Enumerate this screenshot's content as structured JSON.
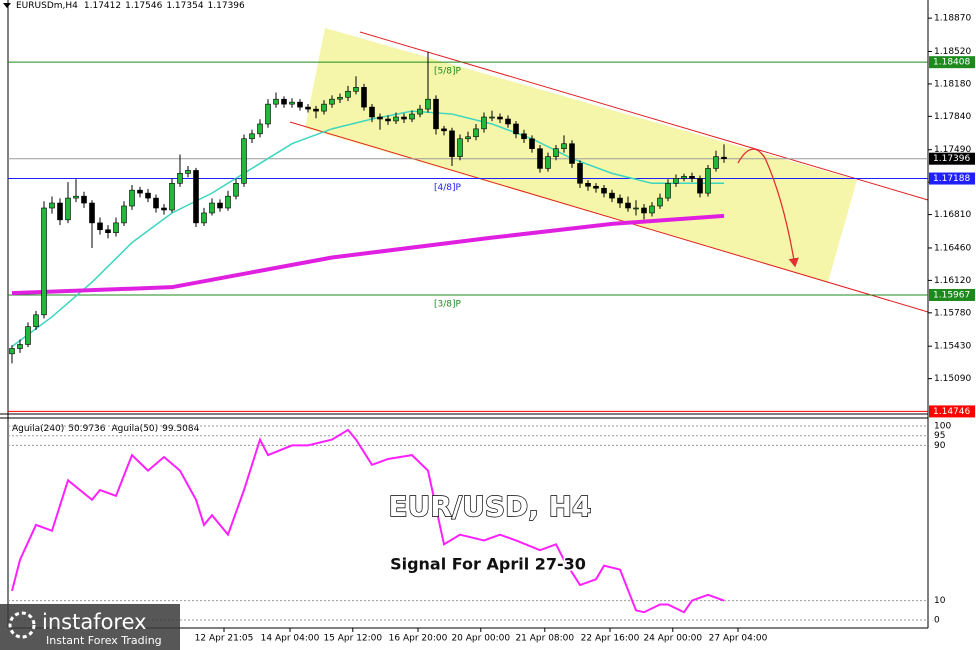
{
  "chart_data": [
    {
      "type": "candlestick",
      "title": "EURUSDm,H4",
      "xlim": [
        -0.5,
        114.5
      ],
      "ylim": [
        1.1474,
        1.1906
      ],
      "yticks": [
        {
          "value": 1.1887,
          "label": "1.18870"
        },
        {
          "value": 1.1852,
          "label": "1.18520"
        },
        {
          "value": 1.1818,
          "label": "1.18180"
        },
        {
          "value": 1.1784,
          "label": "1.17840"
        },
        {
          "value": 1.1749,
          "label": "1.17490"
        },
        {
          "value": 1.1715,
          "label": "1.17150"
        },
        {
          "value": 1.1681,
          "label": "1.16810"
        },
        {
          "value": 1.1646,
          "label": "1.16460"
        },
        {
          "value": 1.1612,
          "label": "1.16120"
        },
        {
          "value": 1.1578,
          "label": "1.15780"
        },
        {
          "value": 1.1543,
          "label": "1.15430"
        },
        {
          "value": 1.1509,
          "label": "1.15090"
        }
      ],
      "xticks": [
        {
          "value": 26.5,
          "label": "12 Apr 21:05"
        },
        {
          "value": 34.75,
          "label": "14 Apr 04:00"
        },
        {
          "value": 42.6,
          "label": "15 Apr 12:00"
        },
        {
          "value": 50.75,
          "label": "16 Apr 20:00"
        },
        {
          "value": 58.6,
          "label": "20 Apr 00:00"
        },
        {
          "value": 66.6,
          "label": "21 Apr 08:00"
        },
        {
          "value": 74.75,
          "label": "22 Apr 16:00"
        },
        {
          "value": 82.6,
          "label": "24 Apr 00:00"
        },
        {
          "value": 90.75,
          "label": "27 Apr 04:00"
        }
      ],
      "up_color": "#22b83a",
      "down_color": "#000000",
      "last_price_color": "#9a9a9a",
      "candles": [
        [
          1.1535,
          1.1544,
          1.1525,
          1.15406
        ],
        [
          1.15406,
          1.155,
          1.1536,
          1.15448
        ],
        [
          1.15448,
          1.1568,
          1.1542,
          1.15635
        ],
        [
          1.15635,
          1.158,
          1.156,
          1.15759
        ],
        [
          1.15759,
          1.1695,
          1.1572,
          1.16879
        ],
        [
          1.16879,
          1.17,
          1.1682,
          1.16931
        ],
        [
          1.16931,
          1.1698,
          1.167,
          1.16755
        ],
        [
          1.16755,
          1.1715,
          1.1672,
          1.16983
        ],
        [
          1.16983,
          1.1718,
          1.1694,
          1.17003
        ],
        [
          1.17003,
          1.1705,
          1.1688,
          1.16931
        ],
        [
          1.16931,
          1.1696,
          1.1646,
          1.16723
        ],
        [
          1.16723,
          1.1678,
          1.166,
          1.16651
        ],
        [
          1.16651,
          1.167,
          1.1656,
          1.1662
        ],
        [
          1.1662,
          1.1678,
          1.1658,
          1.16723
        ],
        [
          1.16723,
          1.1695,
          1.1669,
          1.169
        ],
        [
          1.169,
          1.1712,
          1.1686,
          1.17066
        ],
        [
          1.17066,
          1.171,
          1.1699,
          1.17035
        ],
        [
          1.17035,
          1.1708,
          1.1694,
          1.16983
        ],
        [
          1.16983,
          1.1702,
          1.1683,
          1.16879
        ],
        [
          1.16879,
          1.1692,
          1.1681,
          1.16858
        ],
        [
          1.16858,
          1.1719,
          1.1683,
          1.17138
        ],
        [
          1.17138,
          1.1744,
          1.171,
          1.17242
        ],
        [
          1.17242,
          1.1732,
          1.172,
          1.17273
        ],
        [
          1.17273,
          1.173,
          1.1668,
          1.16723
        ],
        [
          1.16723,
          1.1688,
          1.1669,
          1.16827
        ],
        [
          1.16827,
          1.1698,
          1.168,
          1.16931
        ],
        [
          1.16931,
          1.1697,
          1.1684,
          1.16879
        ],
        [
          1.16879,
          1.1706,
          1.1685,
          1.17003
        ],
        [
          1.17003,
          1.1719,
          1.1697,
          1.17138
        ],
        [
          1.17138,
          1.1765,
          1.171,
          1.17605
        ],
        [
          1.17605,
          1.177,
          1.1756,
          1.17657
        ],
        [
          1.17657,
          1.1781,
          1.1762,
          1.1776
        ],
        [
          1.1776,
          1.1802,
          1.1772,
          1.17968
        ],
        [
          1.17968,
          1.1809,
          1.1793,
          1.1802
        ],
        [
          1.1802,
          1.1805,
          1.1793,
          1.17968
        ],
        [
          1.17968,
          1.1803,
          1.1793,
          1.17989
        ],
        [
          1.17989,
          1.1802,
          1.179,
          1.17937
        ],
        [
          1.17937,
          1.1797,
          1.1788,
          1.17916
        ],
        [
          1.17916,
          1.1795,
          1.1782,
          1.17895
        ],
        [
          1.17895,
          1.1801,
          1.1786,
          1.17968
        ],
        [
          1.17968,
          1.1806,
          1.1793,
          1.1802
        ],
        [
          1.1802,
          1.1808,
          1.1798,
          1.1804
        ],
        [
          1.1804,
          1.1816,
          1.18,
          1.18103
        ],
        [
          1.18103,
          1.1826,
          1.1807,
          1.18144
        ],
        [
          1.18144,
          1.1818,
          1.179,
          1.17937
        ],
        [
          1.17937,
          1.1797,
          1.1778,
          1.17833
        ],
        [
          1.17833,
          1.1787,
          1.177,
          1.17812
        ],
        [
          1.17812,
          1.1785,
          1.1775,
          1.17792
        ],
        [
          1.17792,
          1.1788,
          1.1776,
          1.17833
        ],
        [
          1.17833,
          1.1787,
          1.1777,
          1.17812
        ],
        [
          1.17812,
          1.179,
          1.1778,
          1.17864
        ],
        [
          1.17864,
          1.1796,
          1.1783,
          1.17916
        ],
        [
          1.17916,
          1.18517,
          1.1788,
          1.1802
        ],
        [
          1.1802,
          1.1806,
          1.1765,
          1.17709
        ],
        [
          1.17709,
          1.1774,
          1.1764,
          1.17688
        ],
        [
          1.17688,
          1.1772,
          1.1732,
          1.17418
        ],
        [
          1.17418,
          1.1765,
          1.1738,
          1.17605
        ],
        [
          1.17605,
          1.1768,
          1.1757,
          1.17626
        ],
        [
          1.17626,
          1.1776,
          1.1759,
          1.17709
        ],
        [
          1.17709,
          1.1788,
          1.1767,
          1.17833
        ],
        [
          1.17833,
          1.179,
          1.1779,
          1.17833
        ],
        [
          1.17833,
          1.1787,
          1.1777,
          1.17812
        ],
        [
          1.17812,
          1.1785,
          1.1772,
          1.1776
        ],
        [
          1.1776,
          1.1779,
          1.1761,
          1.17657
        ],
        [
          1.17657,
          1.177,
          1.1756,
          1.17605
        ],
        [
          1.17605,
          1.1764,
          1.1746,
          1.17501
        ],
        [
          1.17501,
          1.1754,
          1.1725,
          1.17294
        ],
        [
          1.17294,
          1.1746,
          1.1726,
          1.17418
        ],
        [
          1.17418,
          1.1754,
          1.1738,
          1.17501
        ],
        [
          1.17501,
          1.1764,
          1.1746,
          1.17553
        ],
        [
          1.17553,
          1.1759,
          1.173,
          1.17346
        ],
        [
          1.17346,
          1.1738,
          1.1709,
          1.17138
        ],
        [
          1.17138,
          1.1717,
          1.1706,
          1.17107
        ],
        [
          1.17107,
          1.1714,
          1.1704,
          1.17086
        ],
        [
          1.17086,
          1.1712,
          1.1699,
          1.17035
        ],
        [
          1.17035,
          1.1707,
          1.1694,
          1.16983
        ],
        [
          1.16983,
          1.1702,
          1.1688,
          1.16931
        ],
        [
          1.16931,
          1.17,
          1.1684,
          1.16879
        ],
        [
          1.16879,
          1.1696,
          1.168,
          1.16879
        ],
        [
          1.16879,
          1.1692,
          1.1676,
          1.16827
        ],
        [
          1.16827,
          1.1694,
          1.1679,
          1.169
        ],
        [
          1.169,
          1.1703,
          1.1687,
          1.16983
        ],
        [
          1.16983,
          1.1718,
          1.1695,
          1.17138
        ],
        [
          1.17138,
          1.1723,
          1.171,
          1.1719
        ],
        [
          1.1719,
          1.1724,
          1.1716,
          1.17211
        ],
        [
          1.17211,
          1.1725,
          1.1715,
          1.1719
        ],
        [
          1.1719,
          1.1722,
          1.1699,
          1.17035
        ],
        [
          1.17035,
          1.1733,
          1.17,
          1.17294
        ],
        [
          1.17294,
          1.1748,
          1.1726,
          1.17418
        ],
        [
          1.17412,
          1.17546,
          1.17354,
          1.17396
        ]
      ],
      "moving_averages": [
        {
          "color": "#3cd6c0",
          "width": 1.5,
          "x": [
            0,
            5,
            10,
            15,
            20,
            25,
            30,
            35,
            40,
            45,
            50,
            55,
            60,
            65,
            70,
            75,
            80,
            85,
            89
          ],
          "values": [
            1.15427,
            1.15738,
            1.16101,
            1.16516,
            1.16827,
            1.17035,
            1.17294,
            1.17553,
            1.17709,
            1.17812,
            1.17895,
            1.17864,
            1.1776,
            1.17605,
            1.17397,
            1.17242,
            1.17138,
            1.17138,
            1.17138
          ]
        },
        {
          "color": "#e020e0",
          "width": 4,
          "x": [
            0,
            20,
            40,
            60,
            75,
            89
          ],
          "values": [
            1.15987,
            1.16049,
            1.1636,
            1.16568,
            1.16713,
            1.16796
          ]
        }
      ],
      "levels": [
        {
          "value": 1.18408,
          "label": "[5/8]P",
          "color": "#1e8a1e"
        },
        {
          "value": 1.17188,
          "label": "[4/8]P",
          "color": "#2020ff"
        },
        {
          "value": 1.15967,
          "label": "[3/8]P",
          "color": "#1e8a1e"
        },
        {
          "value": 1.14746,
          "color": "#ff0000"
        }
      ]
    },
    {
      "type": "line",
      "xlim": [
        -0.5,
        114.5
      ],
      "ylim": [
        0,
        100
      ],
      "yticks": [
        100,
        95,
        90,
        10,
        0
      ],
      "indicators": [
        {
          "name": "Aguila(240)",
          "value": 50.9736
        },
        {
          "name": "Aguila(50)",
          "value": 99.5084
        }
      ],
      "series": [
        {
          "color": "#ff20ff",
          "x": [
            0,
            1,
            3,
            5,
            7,
            10,
            11,
            13,
            15,
            17,
            19,
            21,
            23,
            24,
            25,
            27,
            29,
            31,
            32,
            35,
            37,
            40,
            42,
            43,
            45,
            47,
            50,
            52,
            54,
            56,
            59,
            61,
            63,
            66,
            68,
            69,
            71,
            73,
            74,
            76,
            78,
            79,
            81,
            82,
            84,
            85,
            87,
            89
          ],
          "values": [
            15,
            31,
            49,
            46,
            72,
            62,
            67,
            64,
            85,
            77,
            84,
            77,
            62,
            49,
            54,
            44,
            67,
            93,
            85,
            90,
            90,
            93,
            98,
            93,
            80,
            83,
            85,
            77,
            39,
            44,
            41,
            44,
            41,
            36,
            39,
            31,
            18,
            21,
            28,
            26,
            5,
            4,
            8,
            8,
            4,
            10,
            13,
            10
          ]
        }
      ]
    }
  ],
  "overlay": {
    "title": "EUR/USD, H4",
    "subtitle": "Signal For April 27-30"
  },
  "logo": {
    "name": "instaforex",
    "tagline": "Instant Forex Trading"
  }
}
